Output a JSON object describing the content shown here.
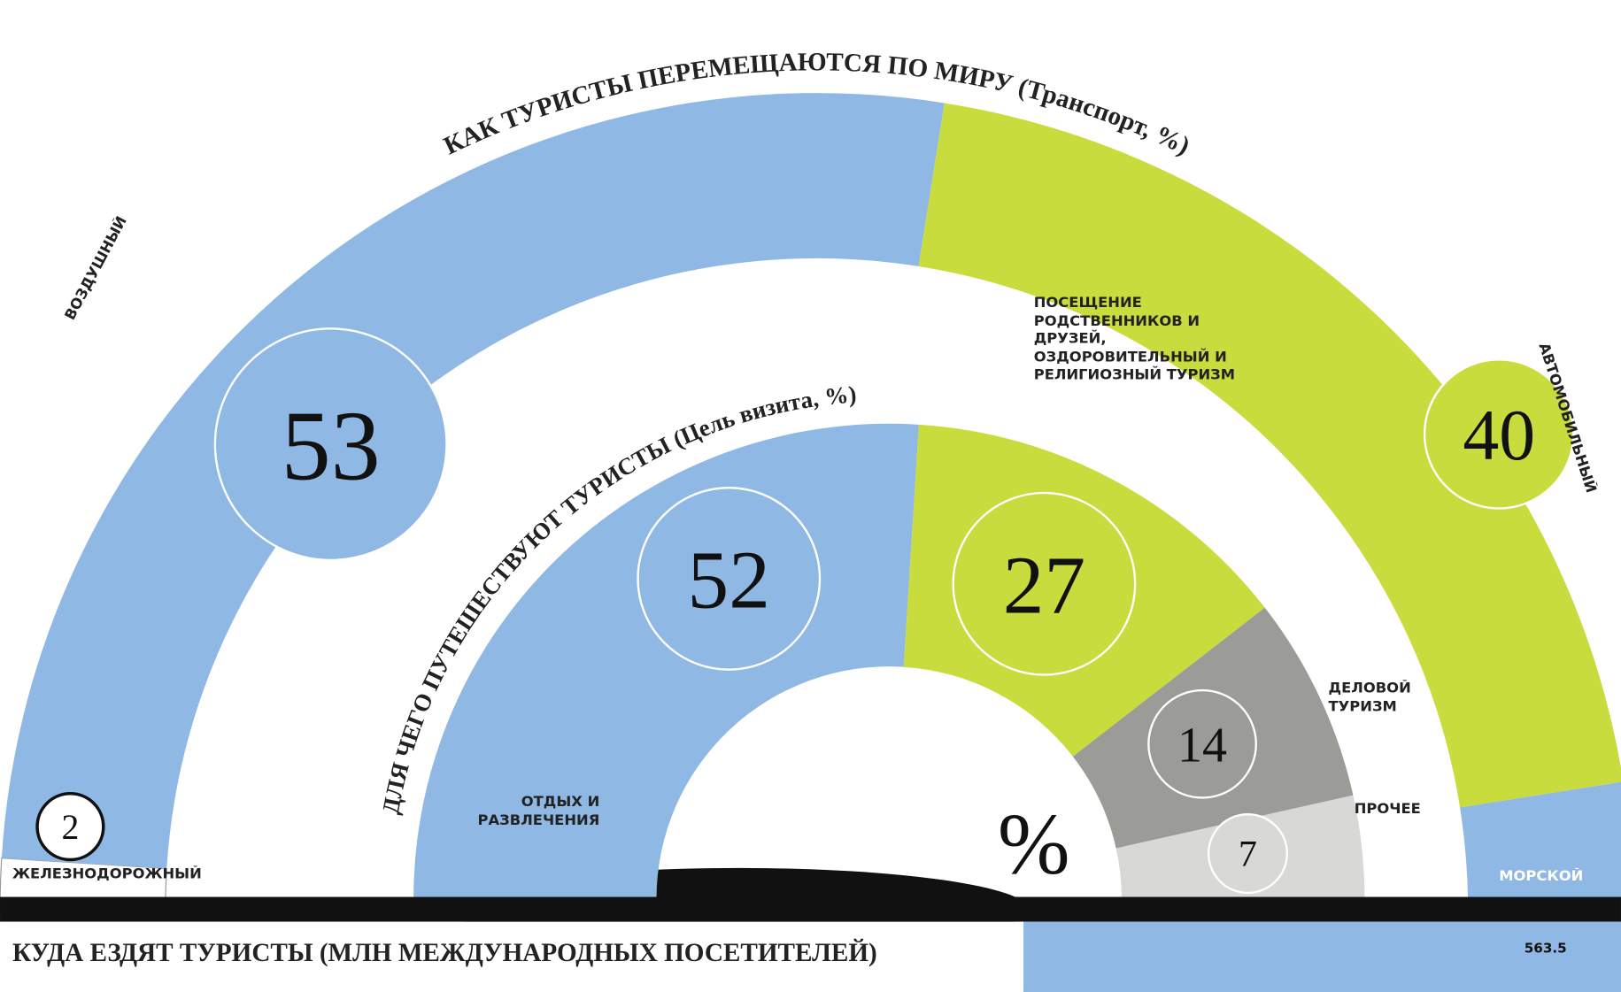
{
  "chart_data": [
    {
      "type": "pie",
      "title": "КАК ТУРИСТЫ ПЕРЕМЕЩАЮТСЯ ПО МИРУ (Транспорт, %)",
      "categories": [
        "ЖЕЛЕЗНОДОРОЖНЫЙ",
        "ВОЗДУШНЫЙ",
        "АВТОМОБИЛЬНЫЙ",
        "МОРСКОЙ"
      ],
      "values": [
        2,
        53,
        40,
        5
      ],
      "colors": [
        "#ffffff",
        "#8fb9e4",
        "#c9dc3e",
        "#8fb9e4"
      ]
    },
    {
      "type": "pie",
      "title": "ДЛЯ ЧЕГО ПУТЕШЕСТВУЮТ ТУРИСТЫ (Цель визита, %)",
      "categories": [
        "ОТДЫХ И РАЗВЛЕЧЕНИЯ",
        "ПОСЕЩЕНИЕ РОДСТВЕННИКОВ И ДРУЗЕЙ, ОЗДОРОВИТЕЛЬНЫЙ И РЕЛИГИОЗНЫЙ ТУРИЗМ",
        "ДЕЛОВОЙ ТУРИЗМ",
        "ПРОЧЕЕ"
      ],
      "values": [
        52,
        27,
        14,
        7
      ],
      "colors": [
        "#8fb9e4",
        "#c9dc3e",
        "#9b9b97",
        "#d8d8d6"
      ]
    }
  ],
  "percent_sign": "%",
  "footer": {
    "title": "КУДА ЕЗДЯТ ТУРИСТЫ (МЛН МЕЖДУНАРОДНЫХ ПОСЕТИТЕЛЕЙ)",
    "value_label": "563.5"
  }
}
